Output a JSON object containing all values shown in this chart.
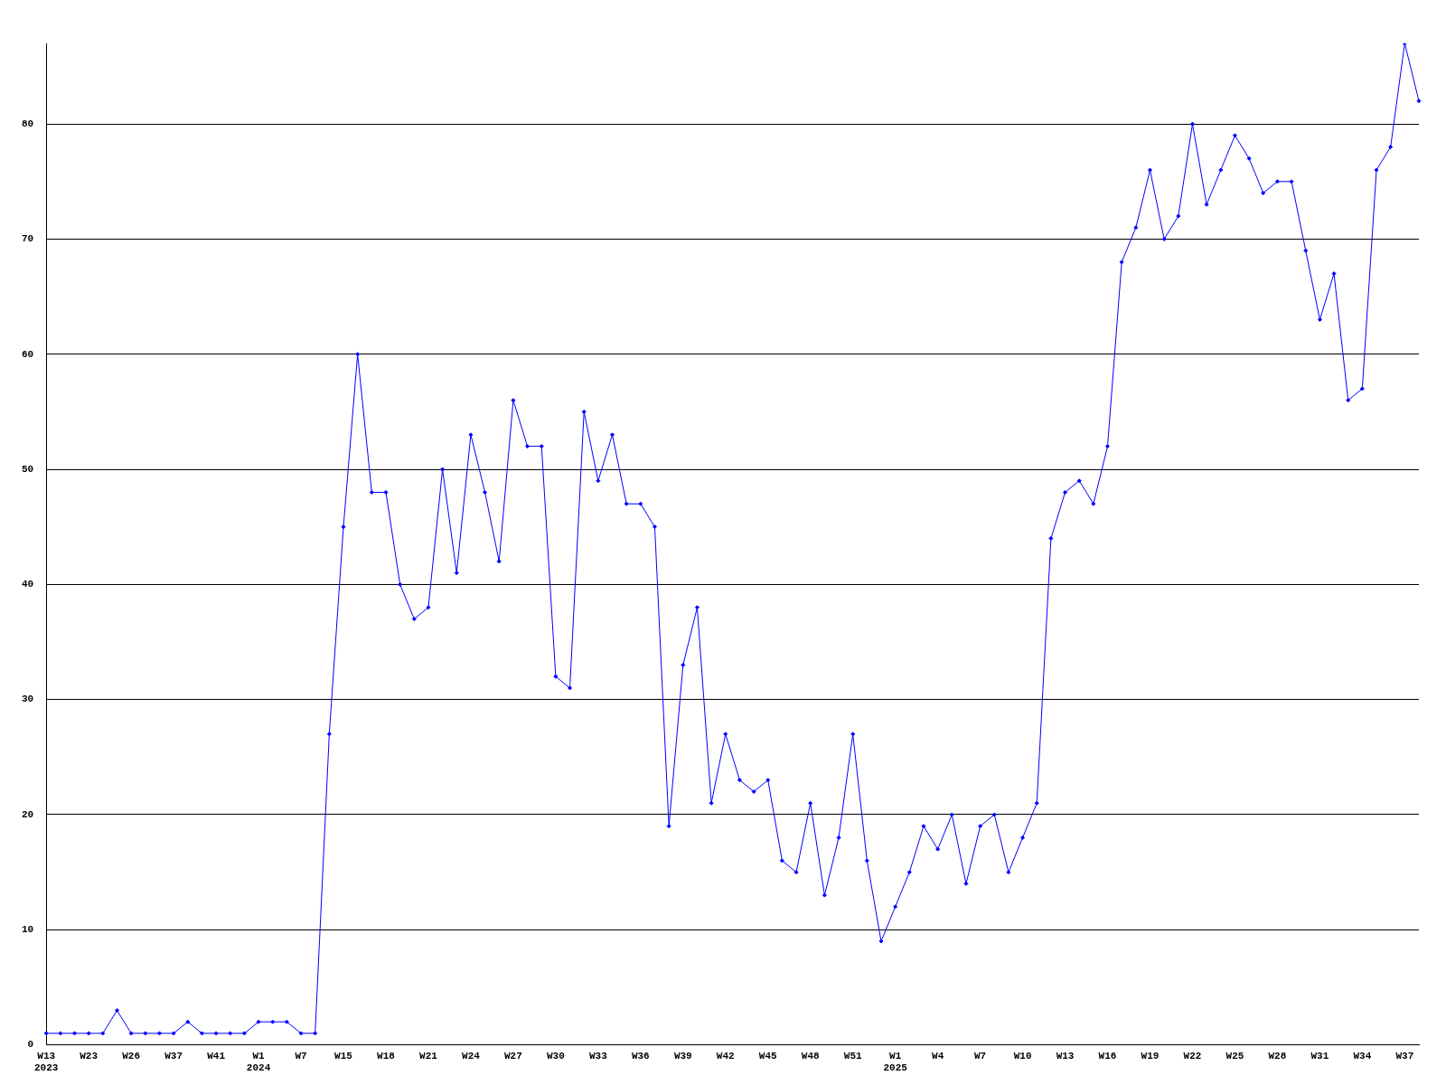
{
  "chart_data": {
    "type": "line",
    "categories": [
      "W13\n2023",
      null,
      null,
      "W23",
      null,
      null,
      "W26",
      null,
      null,
      "W37",
      null,
      null,
      "W41",
      null,
      null,
      "W1\n2024",
      null,
      null,
      "W7",
      null,
      null,
      "W15",
      null,
      null,
      "W18",
      null,
      null,
      "W21",
      null,
      null,
      "W24",
      null,
      null,
      "W27",
      null,
      null,
      "W30",
      null,
      null,
      "W33",
      null,
      null,
      "W36",
      null,
      null,
      "W39",
      null,
      null,
      "W42",
      null,
      null,
      "W45",
      null,
      null,
      "W48",
      null,
      null,
      "W51",
      null,
      null,
      "W1\n2025",
      null,
      null,
      "W4",
      null,
      null,
      "W7",
      null,
      null,
      "W10",
      null,
      null,
      "W13",
      null,
      null,
      "W16",
      null,
      null,
      "W19",
      null,
      null,
      "W22",
      null,
      null,
      "W25",
      null,
      null,
      "W28",
      null,
      null,
      "W31",
      null,
      null,
      "W34",
      null,
      null,
      "W37",
      null
    ],
    "series": [
      {
        "color": "#0000ff",
        "values": [
          1,
          1,
          1,
          1,
          1,
          3,
          1,
          1,
          1,
          1,
          2,
          1,
          1,
          1,
          1,
          2,
          2,
          2,
          1,
          1,
          27,
          45,
          60,
          48,
          48,
          40,
          37,
          38,
          50,
          41,
          53,
          48,
          42,
          56,
          52,
          52,
          32,
          31,
          55,
          49,
          53,
          47,
          47,
          45,
          19,
          33,
          38,
          21,
          27,
          23,
          22,
          23,
          16,
          15,
          21,
          13,
          18,
          27,
          16,
          9,
          12,
          15,
          19,
          17,
          20,
          14,
          19,
          20,
          15,
          18,
          21,
          44,
          48,
          49,
          47,
          52,
          68,
          71,
          76,
          70,
          72,
          80,
          73,
          76,
          79,
          77,
          74,
          75,
          75,
          69,
          63,
          67,
          56,
          57,
          76,
          78,
          87,
          82
        ]
      }
    ],
    "ylim": [
      0,
      87
    ],
    "yticks": [
      0,
      10,
      20,
      30,
      40,
      50,
      60,
      70,
      80
    ],
    "grid": "y",
    "legend": false,
    "marker": "diamond",
    "line_style": "solid"
  }
}
